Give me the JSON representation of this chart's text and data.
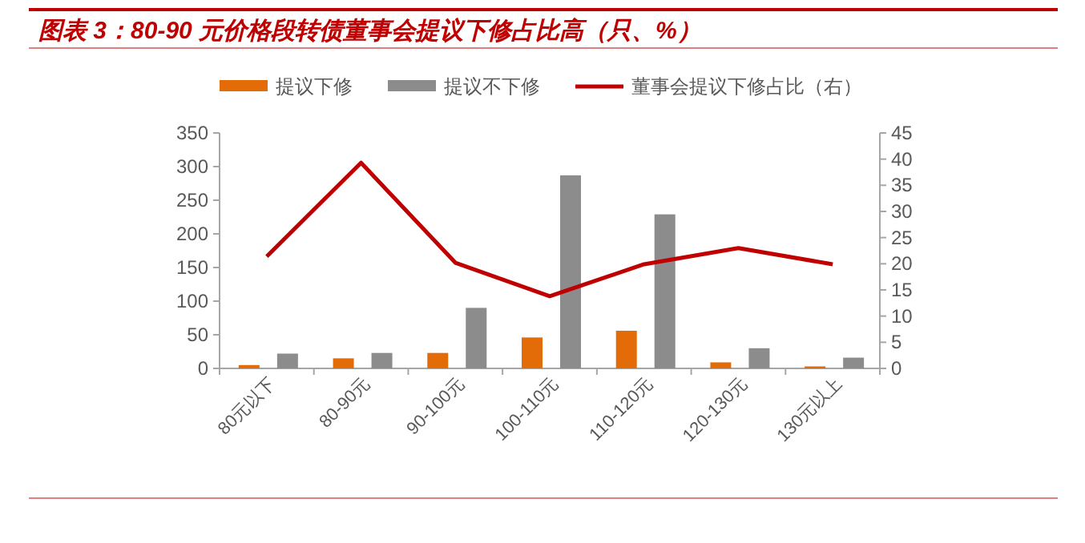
{
  "chart_data": {
    "type": "bar",
    "title": "图表 3：80-90 元价格段转债董事会提议下修占比高（只、%）",
    "categories": [
      "80元以下",
      "80-90元",
      "90-100元",
      "100-110元",
      "110-120元",
      "120-130元",
      "130元以上"
    ],
    "series": [
      {
        "name": "提议下修",
        "color": "#e36c09",
        "values": [
          5,
          15,
          23,
          46,
          56,
          9,
          3
        ]
      },
      {
        "name": "提议不下修",
        "color": "#8c8c8c",
        "values": [
          22,
          23,
          90,
          287,
          229,
          30,
          16
        ]
      },
      {
        "name": "董事会提议下修占比（右）",
        "color": "#c00000",
        "type": "line",
        "axis": "y2",
        "values": [
          21.4,
          39.3,
          20.2,
          13.8,
          19.9,
          23,
          19.9
        ]
      }
    ],
    "ylim": [
      0,
      350
    ],
    "yticks": [
      0,
      50,
      100,
      150,
      200,
      250,
      300,
      350
    ],
    "y2lim": [
      0,
      45
    ],
    "y2ticks": [
      0,
      5,
      10,
      15,
      20,
      25,
      30,
      35,
      40,
      45
    ],
    "legend": "top",
    "grid": false
  }
}
